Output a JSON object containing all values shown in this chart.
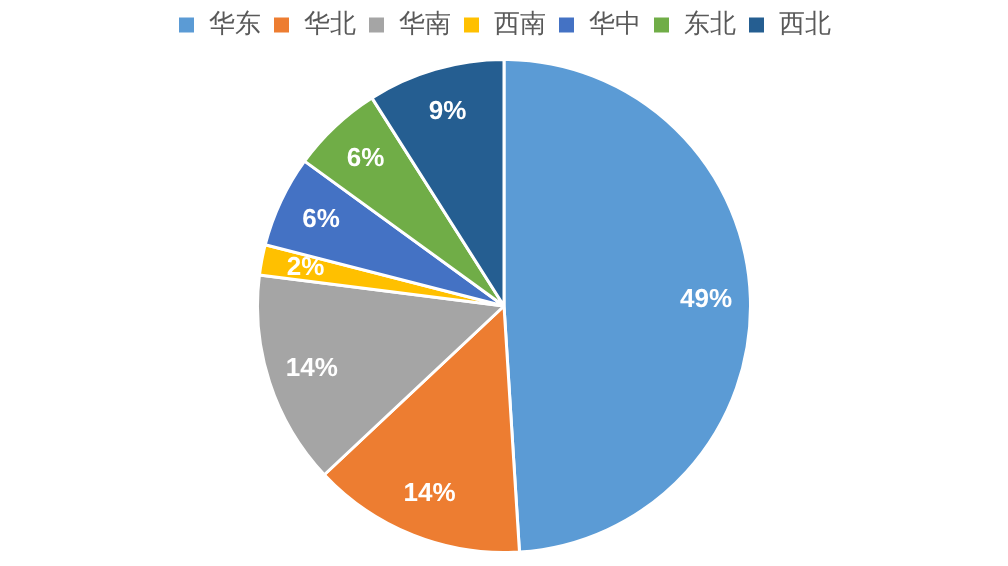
{
  "chart_data": {
    "type": "pie",
    "categories": [
      "华东",
      "华北",
      "华南",
      "西南",
      "华中",
      "东北",
      "西北"
    ],
    "values": [
      49,
      14,
      14,
      2,
      6,
      6,
      9
    ],
    "colors": [
      "#5b9bd5",
      "#ed7d31",
      "#a5a5a5",
      "#ffc000",
      "#4472c4",
      "#70ad47",
      "#255e91"
    ],
    "value_labels": [
      "49%",
      "14%",
      "14%",
      "2%",
      "6%",
      "6%",
      "9%"
    ],
    "legend": "top"
  }
}
